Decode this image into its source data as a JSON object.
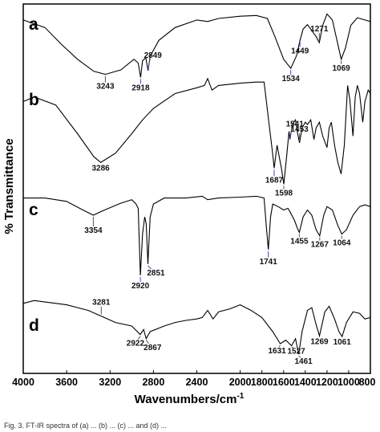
{
  "chart_data": {
    "type": "line",
    "title": "",
    "xlabel": "Wavenumbers/cm",
    "xlabel_sup": "-1",
    "ylabel": "% Transmittance",
    "xlim": [
      4000,
      800
    ],
    "x_reversed": true,
    "x_ticks": [
      4000,
      3600,
      3200,
      2800,
      2400,
      2000,
      1800,
      1600,
      1400,
      1200,
      1000,
      800
    ],
    "grid": false,
    "legend": "none",
    "line_color": "#000000",
    "annotation_color": "#3a4fa8",
    "caption_fragment": "Fig. 3. FT-IR spectra of (a) ... (b) ... (c) ... and (d) ...",
    "series": [
      {
        "name": "a",
        "points": [
          [
            4000,
            0.82
          ],
          [
            3800,
            0.72
          ],
          [
            3650,
            0.5
          ],
          [
            3500,
            0.3
          ],
          [
            3350,
            0.14
          ],
          [
            3243,
            0.1
          ],
          [
            3100,
            0.16
          ],
          [
            2980,
            0.3
          ],
          [
            2940,
            0.25
          ],
          [
            2918,
            0.06
          ],
          [
            2900,
            0.28
          ],
          [
            2870,
            0.32
          ],
          [
            2849,
            0.15
          ],
          [
            2830,
            0.34
          ],
          [
            2750,
            0.55
          ],
          [
            2600,
            0.72
          ],
          [
            2400,
            0.82
          ],
          [
            2300,
            0.8
          ],
          [
            2200,
            0.84
          ],
          [
            2000,
            0.87
          ],
          [
            1850,
            0.88
          ],
          [
            1750,
            0.84
          ],
          [
            1680,
            0.6
          ],
          [
            1600,
            0.3
          ],
          [
            1534,
            0.18
          ],
          [
            1480,
            0.35
          ],
          [
            1449,
            0.55
          ],
          [
            1420,
            0.7
          ],
          [
            1380,
            0.76
          ],
          [
            1300,
            0.6
          ],
          [
            1271,
            0.52
          ],
          [
            1240,
            0.75
          ],
          [
            1200,
            0.9
          ],
          [
            1150,
            0.82
          ],
          [
            1100,
            0.5
          ],
          [
            1069,
            0.3
          ],
          [
            1030,
            0.45
          ],
          [
            980,
            0.75
          ],
          [
            920,
            0.85
          ],
          [
            850,
            0.82
          ],
          [
            800,
            0.8
          ]
        ],
        "peaks": [
          3243,
          2918,
          2849,
          1534,
          1449,
          1271,
          1069
        ]
      },
      {
        "name": "b",
        "points": [
          [
            4000,
            0.78
          ],
          [
            3900,
            0.82
          ],
          [
            3700,
            0.75
          ],
          [
            3500,
            0.5
          ],
          [
            3350,
            0.3
          ],
          [
            3286,
            0.25
          ],
          [
            3150,
            0.33
          ],
          [
            3000,
            0.5
          ],
          [
            2900,
            0.62
          ],
          [
            2800,
            0.72
          ],
          [
            2600,
            0.85
          ],
          [
            2400,
            0.9
          ],
          [
            2330,
            0.92
          ],
          [
            2300,
            0.98
          ],
          [
            2260,
            0.88
          ],
          [
            2200,
            0.92
          ],
          [
            2000,
            0.94
          ],
          [
            1850,
            0.95
          ],
          [
            1780,
            0.95
          ],
          [
            1730,
            0.55
          ],
          [
            1700,
            0.32
          ],
          [
            1687,
            0.2
          ],
          [
            1660,
            0.4
          ],
          [
            1640,
            0.3
          ],
          [
            1620,
            0.2
          ],
          [
            1598,
            0.06
          ],
          [
            1570,
            0.32
          ],
          [
            1550,
            0.52
          ],
          [
            1541,
            0.45
          ],
          [
            1520,
            0.58
          ],
          [
            1490,
            0.62
          ],
          [
            1470,
            0.5
          ],
          [
            1453,
            0.42
          ],
          [
            1430,
            0.55
          ],
          [
            1400,
            0.6
          ],
          [
            1380,
            0.58
          ],
          [
            1350,
            0.62
          ],
          [
            1320,
            0.45
          ],
          [
            1300,
            0.55
          ],
          [
            1270,
            0.6
          ],
          [
            1240,
            0.48
          ],
          [
            1200,
            0.38
          ],
          [
            1180,
            0.55
          ],
          [
            1160,
            0.6
          ],
          [
            1130,
            0.4
          ],
          [
            1100,
            0.25
          ],
          [
            1070,
            0.15
          ],
          [
            1040,
            0.4
          ],
          [
            1010,
            0.92
          ],
          [
            990,
            0.8
          ],
          [
            960,
            0.48
          ],
          [
            940,
            0.82
          ],
          [
            920,
            0.92
          ],
          [
            900,
            0.85
          ],
          [
            870,
            0.6
          ],
          [
            850,
            0.78
          ],
          [
            820,
            0.88
          ],
          [
            800,
            0.85
          ]
        ],
        "peaks": [
          3286,
          1687,
          1598,
          1541,
          1453
        ]
      },
      {
        "name": "c",
        "points": [
          [
            4000,
            0.92
          ],
          [
            3800,
            0.92
          ],
          [
            3600,
            0.88
          ],
          [
            3450,
            0.78
          ],
          [
            3354,
            0.72
          ],
          [
            3250,
            0.78
          ],
          [
            3100,
            0.86
          ],
          [
            3000,
            0.9
          ],
          [
            2960,
            0.85
          ],
          [
            2940,
            0.8
          ],
          [
            2920,
            0.02
          ],
          [
            2900,
            0.5
          ],
          [
            2880,
            0.7
          ],
          [
            2866,
            0.62
          ],
          [
            2851,
            0.15
          ],
          [
            2830,
            0.7
          ],
          [
            2800,
            0.85
          ],
          [
            2700,
            0.92
          ],
          [
            2500,
            0.92
          ],
          [
            2350,
            0.94
          ],
          [
            2300,
            0.9
          ],
          [
            2200,
            0.92
          ],
          [
            2000,
            0.93
          ],
          [
            1850,
            0.94
          ],
          [
            1780,
            0.92
          ],
          [
            1760,
            0.6
          ],
          [
            1741,
            0.32
          ],
          [
            1720,
            0.7
          ],
          [
            1700,
            0.85
          ],
          [
            1650,
            0.82
          ],
          [
            1600,
            0.78
          ],
          [
            1560,
            0.8
          ],
          [
            1541,
            0.76
          ],
          [
            1500,
            0.66
          ],
          [
            1470,
            0.56
          ],
          [
            1455,
            0.52
          ],
          [
            1420,
            0.7
          ],
          [
            1380,
            0.78
          ],
          [
            1340,
            0.72
          ],
          [
            1300,
            0.55
          ],
          [
            1267,
            0.48
          ],
          [
            1230,
            0.72
          ],
          [
            1200,
            0.82
          ],
          [
            1150,
            0.78
          ],
          [
            1100,
            0.6
          ],
          [
            1064,
            0.5
          ],
          [
            1020,
            0.55
          ],
          [
            960,
            0.72
          ],
          [
            900,
            0.82
          ],
          [
            850,
            0.84
          ],
          [
            800,
            0.82
          ]
        ],
        "peaks": [
          3354,
          2920,
          2851,
          1741,
          1455,
          1267,
          1064
        ]
      },
      {
        "name": "d",
        "points": [
          [
            4000,
            0.82
          ],
          [
            3900,
            0.86
          ],
          [
            3800,
            0.84
          ],
          [
            3600,
            0.8
          ],
          [
            3400,
            0.72
          ],
          [
            3281,
            0.64
          ],
          [
            3150,
            0.55
          ],
          [
            3000,
            0.5
          ],
          [
            2922,
            0.38
          ],
          [
            2890,
            0.45
          ],
          [
            2867,
            0.32
          ],
          [
            2830,
            0.42
          ],
          [
            2700,
            0.5
          ],
          [
            2600,
            0.55
          ],
          [
            2500,
            0.58
          ],
          [
            2400,
            0.6
          ],
          [
            2350,
            0.62
          ],
          [
            2300,
            0.72
          ],
          [
            2250,
            0.6
          ],
          [
            2200,
            0.7
          ],
          [
            2100,
            0.74
          ],
          [
            2000,
            0.8
          ],
          [
            1900,
            0.72
          ],
          [
            1800,
            0.62
          ],
          [
            1700,
            0.42
          ],
          [
            1631,
            0.25
          ],
          [
            1580,
            0.3
          ],
          [
            1527,
            0.22
          ],
          [
            1490,
            0.32
          ],
          [
            1461,
            0.1
          ],
          [
            1430,
            0.42
          ],
          [
            1380,
            0.72
          ],
          [
            1340,
            0.76
          ],
          [
            1300,
            0.52
          ],
          [
            1269,
            0.36
          ],
          [
            1220,
            0.7
          ],
          [
            1180,
            0.78
          ],
          [
            1130,
            0.6
          ],
          [
            1090,
            0.42
          ],
          [
            1061,
            0.35
          ],
          [
            1020,
            0.55
          ],
          [
            960,
            0.7
          ],
          [
            900,
            0.68
          ],
          [
            850,
            0.6
          ],
          [
            800,
            0.62
          ]
        ],
        "peaks": [
          3281,
          2922,
          2867,
          1631,
          1527,
          1461,
          1269,
          1061
        ]
      }
    ]
  }
}
